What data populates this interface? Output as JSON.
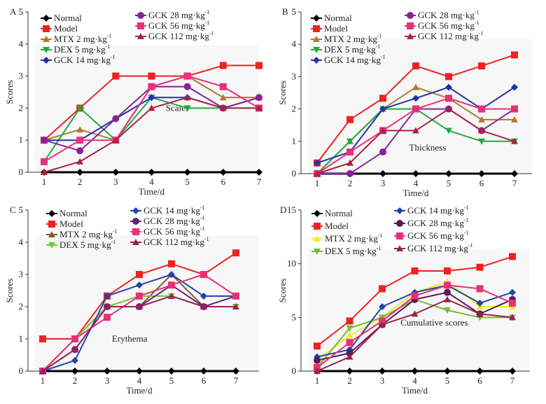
{
  "chart_data": [
    {
      "type": "line",
      "panel": "A",
      "title": "Scales",
      "xlabel": "Time/d",
      "ylabel": "Scores",
      "categories": [
        1,
        2,
        3,
        4,
        5,
        6,
        7
      ],
      "ylim": [
        0,
        5
      ],
      "yticks": [
        0,
        1,
        2,
        3,
        4,
        5
      ],
      "legend_left": [
        "Normal",
        "Model",
        "MTX 2 mg·kg-1",
        "DEX 5 mg·kg-1",
        "GCK 14 mg·kg-1"
      ],
      "legend_right": [
        "GCK 28 mg·kg-1",
        "GCK 56 mg·kg-1",
        "GCK 112 mg·kg-1"
      ],
      "series": [
        {
          "name": "Normal",
          "color": "#000000",
          "marker": "diamond",
          "values": [
            0,
            0,
            0,
            0,
            0,
            0,
            0
          ]
        },
        {
          "name": "Model",
          "color": "#ee2222",
          "marker": "square",
          "values": [
            1,
            2,
            3,
            3,
            3,
            3.33,
            3.33
          ]
        },
        {
          "name": "MTX 2 mg·kg-1",
          "color": "#b07830",
          "marker": "triangle",
          "values": [
            1,
            1.33,
            1,
            2.67,
            3,
            2.33,
            2.33
          ]
        },
        {
          "name": "DEX 5 mg·kg-1",
          "color": "#22aa44",
          "marker": "tri-down",
          "values": [
            0.33,
            2,
            1,
            2.33,
            2,
            2,
            2
          ]
        },
        {
          "name": "GCK 14 mg·kg-1",
          "color": "#2233aa",
          "marker": "diamond",
          "values": [
            1,
            1,
            1.67,
            2.33,
            2.33,
            2,
            2.33
          ]
        },
        {
          "name": "GCK 28 mg·kg-1",
          "color": "#882299",
          "marker": "circle",
          "values": [
            1,
            0.67,
            1.67,
            2.67,
            2.67,
            2,
            2.33
          ]
        },
        {
          "name": "GCK 56 mg·kg-1",
          "color": "#e8307a",
          "marker": "square",
          "values": [
            0.33,
            1,
            1,
            2.67,
            3,
            2.67,
            2
          ]
        },
        {
          "name": "GCK 112 mg·kg-1",
          "color": "#aa2244",
          "marker": "triangle",
          "values": [
            0,
            0.33,
            1,
            2,
            2.33,
            2,
            2
          ]
        }
      ]
    },
    {
      "type": "line",
      "panel": "B",
      "title": "Thickness",
      "xlabel": "Time/d",
      "ylabel": "Scores",
      "categories": [
        1,
        2,
        3,
        4,
        5,
        6,
        7
      ],
      "ylim": [
        0,
        5
      ],
      "yticks": [
        0,
        1,
        2,
        3,
        4,
        5
      ],
      "legend_left": [
        "Normal",
        "Model",
        "MTX 2 mg·kg-1",
        "DEX 5 mg·kg-1",
        "GCK 14 mg·kg-1"
      ],
      "legend_right": [
        "GCK 28 mg·kg-1",
        "GCK 56 mg·kg-1",
        "GCK 112 mg·kg-1"
      ],
      "series": [
        {
          "name": "Normal",
          "color": "#000000",
          "marker": "diamond",
          "values": [
            0,
            0,
            0,
            0,
            0,
            0,
            0
          ]
        },
        {
          "name": "Model",
          "color": "#ee2222",
          "marker": "square",
          "values": [
            0.33,
            1.67,
            2.33,
            3.33,
            3,
            3.33,
            3.67
          ]
        },
        {
          "name": "MTX 2 mg·kg-1",
          "color": "#b07830",
          "marker": "triangle",
          "values": [
            0,
            1,
            2,
            2.67,
            2.33,
            1.67,
            1.67
          ]
        },
        {
          "name": "DEX 5 mg·kg-1",
          "color": "#22aa44",
          "marker": "tri-down",
          "values": [
            0,
            1,
            2,
            2,
            1.33,
            1,
            1
          ]
        },
        {
          "name": "GCK 14 mg·kg-1",
          "color": "#2233aa",
          "marker": "diamond",
          "values": [
            0.33,
            0.67,
            2,
            2.33,
            2.67,
            2,
            2.67
          ]
        },
        {
          "name": "GCK 28 mg·kg-1",
          "color": "#882299",
          "marker": "circle",
          "values": [
            0,
            0,
            0.67,
            2,
            2,
            1.33,
            2
          ]
        },
        {
          "name": "GCK 56 mg·kg-1",
          "color": "#e8307a",
          "marker": "square",
          "values": [
            0,
            0.67,
            1.33,
            2,
            2.33,
            2,
            2
          ]
        },
        {
          "name": "GCK 112 mg·kg-1",
          "color": "#aa2244",
          "marker": "triangle",
          "values": [
            0,
            0.33,
            1.33,
            1.33,
            2,
            1.33,
            1
          ]
        }
      ]
    },
    {
      "type": "line",
      "panel": "C",
      "title": "Erythema",
      "xlabel": "Time/d",
      "ylabel": "Scores",
      "categories": [
        1,
        2,
        3,
        4,
        5,
        6,
        7
      ],
      "ylim": [
        0,
        5
      ],
      "yticks": [
        0,
        1,
        2,
        3,
        4,
        5
      ],
      "legend_left": [
        "Normal",
        "Model",
        "MTX 2 mg·kg-1",
        "DEX 5 mg·kg-1"
      ],
      "legend_right": [
        "GCK 14 mg·kg-1",
        "GCK 28 mg·kg-1",
        "GCK 56 mg·kg-1",
        "GCK 112 mg·kg-1"
      ],
      "series": [
        {
          "name": "Normal",
          "color": "#000000",
          "marker": "diamond",
          "values": [
            0,
            0,
            0,
            0,
            0,
            0,
            0
          ]
        },
        {
          "name": "Model",
          "color": "#ee2222",
          "marker": "square",
          "values": [
            1,
            1,
            2.33,
            3,
            3.33,
            3,
            3.67
          ]
        },
        {
          "name": "MTX 2 mg·kg-1",
          "color": "#8a5a20",
          "marker": "triangle",
          "values": [
            0,
            1,
            2,
            2,
            3,
            2,
            2
          ]
        },
        {
          "name": "DEX 5 mg·kg-1",
          "color": "#66cc33",
          "marker": "tri-down",
          "values": [
            0,
            1,
            2,
            2.33,
            2.33,
            2,
            2
          ]
        },
        {
          "name": "GCK 14 mg·kg-1",
          "color": "#2244aa",
          "marker": "diamond",
          "values": [
            0,
            0.33,
            2.33,
            2.67,
            3,
            2.33,
            2.33
          ]
        },
        {
          "name": "GCK 28 mg·kg-1",
          "color": "#6a2277",
          "marker": "circle",
          "values": [
            0,
            0.67,
            2,
            2,
            2.67,
            2,
            2.33
          ]
        },
        {
          "name": "GCK 56 mg·kg-1",
          "color": "#e8307a",
          "marker": "square",
          "values": [
            0,
            1,
            1.67,
            2.33,
            2.67,
            3,
            2.33
          ]
        },
        {
          "name": "GCK 112 mg·kg-1",
          "color": "#992255",
          "marker": "triangle",
          "values": [
            0,
            0.67,
            2,
            2,
            2.33,
            2,
            2
          ]
        }
      ]
    },
    {
      "type": "line",
      "panel": "D",
      "title": "Cumulative scores",
      "xlabel": "Time/d",
      "ylabel": "Scores",
      "categories": [
        1,
        2,
        3,
        4,
        5,
        6,
        7
      ],
      "ylim": [
        0,
        15
      ],
      "yticks": [
        0,
        5,
        10,
        15
      ],
      "legend_left": [
        "Normal",
        "Model",
        "MTX 2 mg·kg-1",
        "DEX 5 mg·kg-1"
      ],
      "legend_right": [
        "GCK 14 mg·kg-1",
        "GCK 28 mg·kg-1",
        "GCK 56 mg·kg-1",
        "GCK 112 mg·kg-1"
      ],
      "series": [
        {
          "name": "Normal",
          "color": "#000000",
          "marker": "diamond",
          "values": [
            0,
            0,
            0,
            0,
            0,
            0,
            0
          ]
        },
        {
          "name": "Model",
          "color": "#ee2222",
          "marker": "square",
          "values": [
            2.33,
            4.67,
            7.67,
            9.33,
            9.33,
            9.67,
            10.67
          ]
        },
        {
          "name": "MTX 2 mg·kg-1",
          "color": "#eeee22",
          "marker": "triangle",
          "values": [
            1,
            3.33,
            5,
            7.33,
            8.33,
            6,
            6
          ]
        },
        {
          "name": "DEX 5 mg·kg-1",
          "color": "#77bb33",
          "marker": "tri-down",
          "values": [
            0.33,
            4,
            5,
            6.67,
            5.67,
            5,
            5
          ]
        },
        {
          "name": "GCK 14 mg·kg-1",
          "color": "#2244aa",
          "marker": "diamond",
          "values": [
            1.33,
            2,
            6,
            7.33,
            8,
            6.33,
            7.33
          ]
        },
        {
          "name": "GCK 28 mg·kg-1",
          "color": "#5a1a55",
          "marker": "circle",
          "values": [
            1,
            1.67,
            4.33,
            6.67,
            7.33,
            5.33,
            6.67
          ]
        },
        {
          "name": "GCK 56 mg·kg-1",
          "color": "#e8307a",
          "marker": "square",
          "values": [
            0.33,
            2.67,
            4.67,
            7,
            8,
            7.67,
            6.33
          ]
        },
        {
          "name": "GCK 112 mg·kg-1",
          "color": "#992255",
          "marker": "triangle",
          "values": [
            0,
            1.33,
            4.33,
            5.33,
            6.67,
            5.33,
            5
          ]
        }
      ]
    }
  ]
}
